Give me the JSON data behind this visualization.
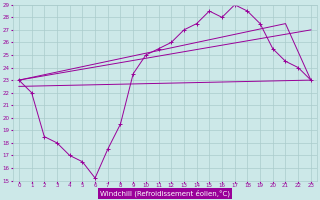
{
  "bg_color": "#cce8e8",
  "grid_color": "#aacccc",
  "line_color": "#990099",
  "xlim": [
    -0.5,
    23.5
  ],
  "ylim": [
    15,
    29
  ],
  "xticks": [
    0,
    1,
    2,
    3,
    4,
    5,
    6,
    7,
    8,
    9,
    10,
    11,
    12,
    13,
    14,
    15,
    16,
    17,
    18,
    19,
    20,
    21,
    22,
    23
  ],
  "yticks": [
    15,
    16,
    17,
    18,
    19,
    20,
    21,
    22,
    23,
    24,
    25,
    26,
    27,
    28,
    29
  ],
  "xlabel": "Windchill (Refroidissement éolien,°C)",
  "series": [
    {
      "x": [
        0,
        1,
        2,
        3,
        4,
        5,
        6,
        7,
        8,
        9,
        10,
        11,
        12,
        13,
        14,
        15,
        16,
        17,
        18,
        19,
        20,
        21,
        22,
        23
      ],
      "y": [
        23.0,
        22.0,
        18.5,
        18.0,
        17.0,
        16.5,
        15.2,
        17.5,
        19.5,
        23.5,
        25.0,
        25.5,
        26.0,
        27.0,
        27.5,
        28.5,
        28.0,
        29.0,
        28.5,
        27.5,
        25.5,
        24.5,
        24.0,
        23.0
      ],
      "marker": true
    },
    {
      "x": [
        0,
        23
      ],
      "y": [
        22.5,
        23.0
      ],
      "marker": false
    },
    {
      "x": [
        0,
        23
      ],
      "y": [
        23.0,
        27.0
      ],
      "marker": false
    },
    {
      "x": [
        0,
        21,
        23
      ],
      "y": [
        23.0,
        27.5,
        23.0
      ],
      "marker": false
    }
  ]
}
